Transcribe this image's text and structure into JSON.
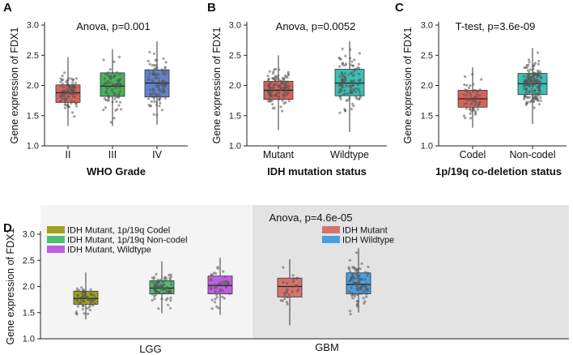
{
  "chart_data": [
    {
      "panel": "A",
      "type": "boxplot",
      "title": "Anova,  p=0.001",
      "xlabel": "WHO Grade",
      "ylabel": "Gene expression of FDX1",
      "ylim": [
        1.0,
        3.0
      ],
      "yticks": [
        "1.0",
        "1.5",
        "2.0",
        "2.5",
        "3.0"
      ],
      "categories": [
        "II",
        "III",
        "IV"
      ],
      "colors": [
        "#d9635a",
        "#47b35a",
        "#6181cc"
      ],
      "boxes": [
        {
          "q1": 1.72,
          "median": 1.88,
          "q3": 2.01,
          "whisker_low": 1.33,
          "whisker_high": 2.47,
          "n": 95
        },
        {
          "q1": 1.82,
          "median": 1.99,
          "q3": 2.21,
          "whisker_low": 1.33,
          "whisker_high": 2.6,
          "n": 80
        },
        {
          "q1": 1.81,
          "median": 2.04,
          "q3": 2.26,
          "whisker_low": 1.35,
          "whisker_high": 2.73,
          "n": 100
        }
      ]
    },
    {
      "panel": "B",
      "type": "boxplot",
      "title": "Anova,  p=0.0052",
      "xlabel": "IDH mutation status",
      "ylabel": "Gene expression of FDX1",
      "ylim": [
        1.0,
        3.0
      ],
      "yticks": [
        "1.0",
        "1.5",
        "2.0",
        "2.5",
        "3.0"
      ],
      "categories": [
        "Mutant",
        "Wildtype"
      ],
      "colors": [
        "#d9635a",
        "#3bbfb4"
      ],
      "boxes": [
        {
          "q1": 1.77,
          "median": 1.92,
          "q3": 2.07,
          "whisker_low": 1.26,
          "whisker_high": 2.5,
          "n": 120
        },
        {
          "q1": 1.83,
          "median": 2.04,
          "q3": 2.27,
          "whisker_low": 1.23,
          "whisker_high": 2.73,
          "n": 120
        }
      ]
    },
    {
      "panel": "C",
      "type": "boxplot",
      "title": "T-test,  p=3.6e-09",
      "xlabel": "1p/19q co-deletion status",
      "ylabel": "Gene expression of FDX1",
      "ylim": [
        1.0,
        3.0
      ],
      "yticks": [
        "1.0",
        "1.5",
        "2.0",
        "2.5",
        "3.0"
      ],
      "categories": [
        "Codel",
        "Non-codel"
      ],
      "colors": [
        "#d9635a",
        "#3bbfb4"
      ],
      "boxes": [
        {
          "q1": 1.64,
          "median": 1.78,
          "q3": 1.92,
          "whisker_low": 1.3,
          "whisker_high": 2.3,
          "n": 60
        },
        {
          "q1": 1.85,
          "median": 2.03,
          "q3": 2.2,
          "whisker_low": 1.36,
          "whisker_high": 2.62,
          "n": 180
        }
      ]
    },
    {
      "panel": "D",
      "type": "boxplot",
      "title": "Anova,  p=4.6e-05",
      "ylabel": "Gene expression of FDX1",
      "ylim": [
        1.0,
        3.0
      ],
      "yticks": [
        "1.0",
        "1.5",
        "2.0",
        "2.5",
        "3.0"
      ],
      "groups": [
        "LGG",
        "GBM"
      ],
      "legend_lgg": [
        {
          "label": "IDH Mutant, 1p/19q Codel",
          "color": "#a1a11f"
        },
        {
          "label": "IDH Mutant, 1p/19q Non-codel",
          "color": "#4dbd76"
        },
        {
          "label": "IDH Mutant, Wildtype",
          "color": "#c15ee0"
        }
      ],
      "legend_gbm": [
        {
          "label": "IDH Mutant",
          "color": "#d4736c"
        },
        {
          "label": "IDH Wildtype",
          "color": "#4a9fe0"
        }
      ],
      "boxes": [
        {
          "name": "IDH Mutant, 1p/19q Codel",
          "group": "LGG",
          "color": "#a1a11f",
          "q1": 1.66,
          "median": 1.77,
          "q3": 1.91,
          "whisker_low": 1.37,
          "whisker_high": 2.27,
          "n": 65
        },
        {
          "name": "IDH Mutant, 1p/19q Non-codel",
          "group": "LGG",
          "color": "#4dbd76",
          "q1": 1.86,
          "median": 1.97,
          "q3": 2.11,
          "whisker_low": 1.49,
          "whisker_high": 2.48,
          "n": 85
        },
        {
          "name": "IDH Mutant, Wildtype",
          "group": "LGG",
          "color": "#c15ee0",
          "q1": 1.86,
          "median": 2.02,
          "q3": 2.2,
          "whisker_low": 1.46,
          "whisker_high": 2.55,
          "n": 45
        },
        {
          "name": "IDH Mutant",
          "group": "GBM",
          "color": "#d4736c",
          "q1": 1.8,
          "median": 2.0,
          "q3": 2.16,
          "whisker_low": 1.26,
          "whisker_high": 2.52,
          "n": 25
        },
        {
          "name": "IDH Wildtype",
          "group": "GBM",
          "color": "#4a9fe0",
          "q1": 1.86,
          "median": 2.04,
          "q3": 2.26,
          "whisker_low": 1.5,
          "whisker_high": 2.73,
          "n": 100
        }
      ]
    }
  ]
}
